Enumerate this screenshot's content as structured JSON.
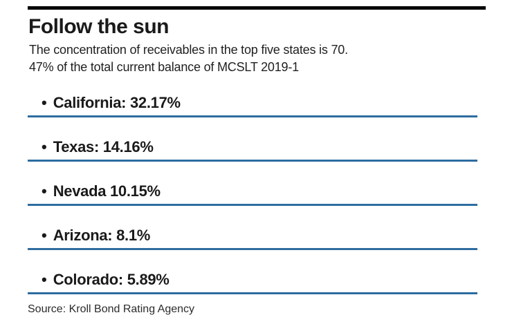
{
  "header": {
    "title": "Follow the sun",
    "subtitle_line1": "The concentration of receivables in the top five states is 70.",
    "subtitle_line2": "47% of the total current balance of MCSLT 2019-1"
  },
  "list": {
    "bullet": "•",
    "items": [
      {
        "state": "California",
        "value": 32.17,
        "label": "California: 32.17%"
      },
      {
        "state": "Texas",
        "value": 14.16,
        "label": "Texas: 14.16%"
      },
      {
        "state": "Nevada",
        "value": 10.15,
        "label": "Nevada 10.15%"
      },
      {
        "state": "Arizona",
        "value": 8.1,
        "label": "Arizona: 8.1%"
      },
      {
        "state": "Colorado",
        "value": 5.89,
        "label": "Colorado: 5.89%"
      }
    ]
  },
  "footer": {
    "source": "Source: Kroll Bond Rating Agency"
  },
  "colors": {
    "accent_blue": "#2d6ca0",
    "top_rule": "#000000",
    "text": "#1a1a1a"
  },
  "chart_data": {
    "type": "table",
    "title": "Follow the sun",
    "subtitle": "The concentration of receivables in the top five states is 70. 47% of the total current balance of MCSLT 2019-1",
    "categories": [
      "California",
      "Texas",
      "Nevada",
      "Arizona",
      "Colorado"
    ],
    "values": [
      32.17,
      14.16,
      10.15,
      8.1,
      5.89
    ],
    "unit": "%",
    "top_five_total_pct": 70.47,
    "deal_name": "MCSLT 2019-1",
    "source": "Source: Kroll Bond Rating Agency",
    "legend_position": "none",
    "grid": false
  }
}
